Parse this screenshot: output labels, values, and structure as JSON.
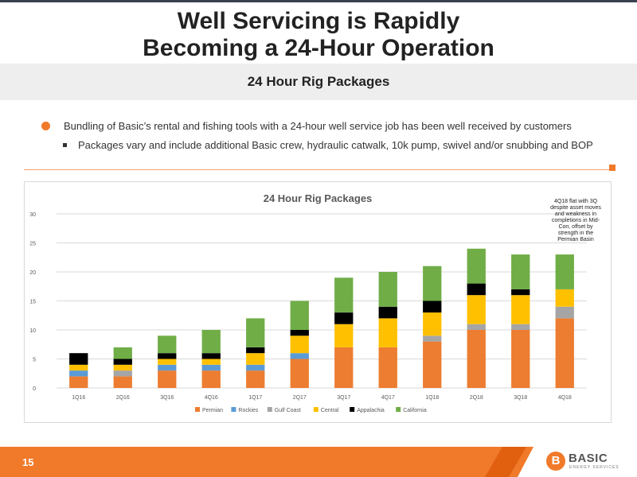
{
  "header": {
    "title_line1": "Well Servicing is Rapidly",
    "title_line2": "Becoming a 24-Hour Operation",
    "subtitle": "24 Hour Rig Packages"
  },
  "bullets": {
    "main": "Bundling of Basic’s rental and fishing tools with a 24-hour well service job has been well received by customers",
    "sub": "Packages vary and include additional Basic crew, hydraulic catwalk, 10k pump, swivel and/or snubbing and BOP"
  },
  "annotation": "4Q18 flat with 3Q despite asset moves and weakness in completions in Mid-Con, offset by strength in the Permian Basin",
  "footer": {
    "page_number": "15",
    "logo_mark": "B",
    "logo_text": "BASIC",
    "logo_sub": "ENERGY SERVICES"
  },
  "colors": {
    "accent": "#f07a2a"
  },
  "chart_data": {
    "type": "bar",
    "stacked": true,
    "title": "24 Hour Rig Packages",
    "categories": [
      "1Q16",
      "2Q16",
      "3Q16",
      "4Q16",
      "1Q17",
      "2Q17",
      "3Q17",
      "4Q17",
      "1Q18",
      "2Q18",
      "3Q18",
      "4Q18"
    ],
    "ylim": [
      0,
      30
    ],
    "yticks": [
      0,
      5,
      10,
      15,
      20,
      25,
      30
    ],
    "grid": true,
    "legend_position": "bottom",
    "series": [
      {
        "name": "Permian",
        "color": "#ed7d31",
        "values": [
          2,
          2,
          3,
          3,
          3,
          5,
          7,
          7,
          8,
          10,
          10,
          12
        ]
      },
      {
        "name": "Rockies",
        "color": "#5b9bd5",
        "values": [
          1,
          0,
          1,
          1,
          1,
          1,
          0,
          0,
          0,
          0,
          0,
          0
        ]
      },
      {
        "name": "Gulf Coast",
        "color": "#a5a5a5",
        "values": [
          0,
          1,
          0,
          0,
          0,
          0,
          0,
          0,
          1,
          1,
          1,
          2
        ]
      },
      {
        "name": "Central",
        "color": "#ffc000",
        "values": [
          1,
          1,
          1,
          1,
          2,
          3,
          4,
          5,
          4,
          5,
          5,
          3
        ]
      },
      {
        "name": "Appalachia",
        "color": "#000000",
        "values": [
          2,
          1,
          1,
          1,
          1,
          1,
          2,
          2,
          2,
          2,
          1,
          0
        ]
      },
      {
        "name": "California",
        "color": "#70ad47",
        "values": [
          0,
          2,
          3,
          4,
          5,
          5,
          6,
          6,
          6,
          6,
          6,
          6
        ]
      }
    ]
  }
}
